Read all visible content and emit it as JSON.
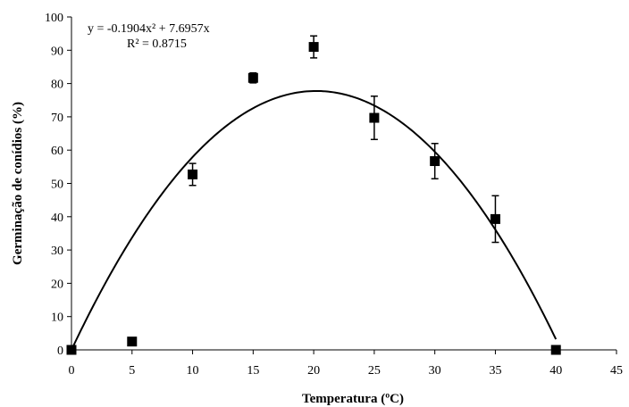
{
  "chart_data": {
    "type": "scatter",
    "xlabel": "Temperatura (ºC)",
    "ylabel": "Germinação de conídios (%)",
    "xlim": [
      0,
      45
    ],
    "ylim": [
      0,
      100
    ],
    "xticks": [
      0,
      5,
      10,
      15,
      20,
      25,
      30,
      35,
      40,
      45
    ],
    "yticks": [
      0,
      10,
      20,
      30,
      40,
      50,
      60,
      70,
      80,
      90,
      100
    ],
    "grid": false,
    "points": [
      {
        "x": 0,
        "y": 0,
        "err": 0
      },
      {
        "x": 5,
        "y": 2.5,
        "err": 0
      },
      {
        "x": 10,
        "y": 52.7,
        "err": 3.3
      },
      {
        "x": 15,
        "y": 81.7,
        "err": 1.5
      },
      {
        "x": 20,
        "y": 91.0,
        "err": 3.3
      },
      {
        "x": 25,
        "y": 69.7,
        "err": 6.5
      },
      {
        "x": 30,
        "y": 56.7,
        "err": 5.3
      },
      {
        "x": 35,
        "y": 39.3,
        "err": 7.0
      },
      {
        "x": 40,
        "y": 0,
        "err": 0
      }
    ],
    "trendline": {
      "type": "polynomial",
      "a": -0.1904,
      "b": 7.6957,
      "c": 0,
      "x_range": [
        0,
        40
      ],
      "equation": "y = -0.1904x² + 7.6957x",
      "r2": "R² = 0.8715"
    }
  }
}
